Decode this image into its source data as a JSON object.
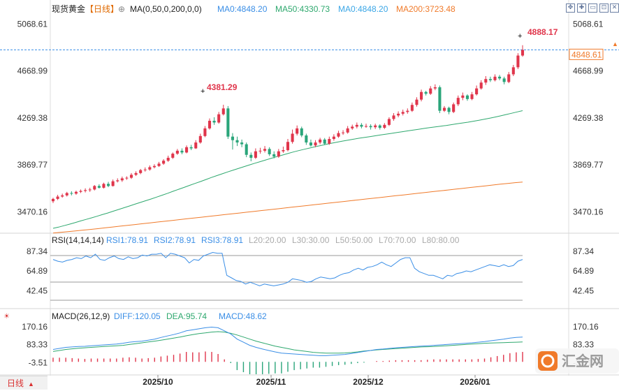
{
  "header": {
    "symbol": "现货黄金",
    "period": "【日线】",
    "ma_settings": "MA(0,50,0,200,0,0)",
    "ma_values": [
      {
        "label": "MA0:4848.20",
        "color": "#3a8ee6"
      },
      {
        "label": "MA50:4330.73",
        "color": "#2ea86e"
      },
      {
        "label": "MA0:4848.20",
        "color": "#3aa6e6"
      },
      {
        "label": "MA200:3723.48",
        "color": "#f07a2a"
      }
    ]
  },
  "window_controls": [
    "move-icon",
    "crosshair-icon",
    "minimize-icon",
    "maximize-icon",
    "close-icon"
  ],
  "main_axis": {
    "ticks": [
      "5068.61",
      "4668.99",
      "4269.38",
      "3869.77",
      "3470.16"
    ],
    "current_price": "4848.61",
    "high_label": "4888.17",
    "peak_label": "4381.29"
  },
  "rsi": {
    "title": "RSI(14,14,14)",
    "values_text": [
      {
        "label": "RSI1:78.91",
        "color": "#3a8ee6"
      },
      {
        "label": "RSI2:78.91",
        "color": "#3a8ee6"
      },
      {
        "label": "RSI3:78.91",
        "color": "#3a8ee6"
      },
      {
        "label": "L20:20.00",
        "color": "#aaaaaa"
      },
      {
        "label": "L30:30.00",
        "color": "#aaaaaa"
      },
      {
        "label": "L50:50.00",
        "color": "#aaaaaa"
      },
      {
        "label": "L70:70.00",
        "color": "#aaaaaa"
      },
      {
        "label": "L80:80.00",
        "color": "#aaaaaa"
      }
    ],
    "ticks": [
      "87.34",
      "64.89",
      "42.45"
    ]
  },
  "macd": {
    "title": "MACD(26,12,9)",
    "values_text": [
      {
        "label": "DIFF:120.05",
        "color": "#3a8ee6"
      },
      {
        "label": "DEA:95.74",
        "color": "#2ea86e"
      },
      {
        "label": "MACD:48.62",
        "color": "#3a8ee6"
      }
    ],
    "ticks": [
      "170.16",
      "83.33",
      "-3.51"
    ]
  },
  "x_axis": [
    "2025/10",
    "2025/11",
    "2025/12",
    "2026/01"
  ],
  "footer": {
    "period_tab": "日线"
  },
  "logo_text": "汇金网",
  "colors": {
    "up": "#e0354b",
    "down": "#2aa57a",
    "ma50": "#2ea86e",
    "ma200": "#f07a2a",
    "rsi": "#3a8ee6",
    "diff": "#3a8ee6",
    "dea": "#2ea86e"
  },
  "chart_data": [
    {
      "type": "candlestick",
      "title": "现货黄金 【日线】",
      "ylim": [
        3300,
        5130
      ],
      "candles": [
        [
          3560,
          3580,
          3545,
          3590
        ],
        [
          3580,
          3600,
          3570,
          3615
        ],
        [
          3600,
          3610,
          3590,
          3625
        ],
        [
          3610,
          3630,
          3600,
          3640
        ],
        [
          3630,
          3625,
          3610,
          3645
        ],
        [
          3625,
          3640,
          3615,
          3650
        ],
        [
          3640,
          3648,
          3630,
          3660
        ],
        [
          3648,
          3655,
          3635,
          3670
        ],
        [
          3655,
          3660,
          3640,
          3675
        ],
        [
          3660,
          3690,
          3652,
          3698
        ],
        [
          3690,
          3675,
          3668,
          3705
        ],
        [
          3675,
          3708,
          3668,
          3718
        ],
        [
          3708,
          3690,
          3680,
          3725
        ],
        [
          3690,
          3730,
          3685,
          3745
        ],
        [
          3730,
          3738,
          3720,
          3755
        ],
        [
          3738,
          3755,
          3725,
          3770
        ],
        [
          3755,
          3760,
          3742,
          3772
        ],
        [
          3760,
          3785,
          3750,
          3800
        ],
        [
          3785,
          3800,
          3775,
          3815
        ],
        [
          3800,
          3825,
          3790,
          3835
        ],
        [
          3825,
          3830,
          3812,
          3848
        ],
        [
          3830,
          3850,
          3820,
          3865
        ],
        [
          3850,
          3860,
          3840,
          3875
        ],
        [
          3860,
          3880,
          3852,
          3895
        ],
        [
          3880,
          3905,
          3870,
          3918
        ],
        [
          3905,
          3930,
          3895,
          3948
        ],
        [
          3930,
          3965,
          3920,
          3975
        ],
        [
          3965,
          3990,
          3955,
          4005
        ],
        [
          3990,
          3975,
          3960,
          4010
        ],
        [
          3975,
          4020,
          3968,
          4035
        ],
        [
          4020,
          4010,
          3995,
          4040
        ],
        [
          4010,
          4060,
          4005,
          4080
        ],
        [
          4060,
          4115,
          4050,
          4135
        ],
        [
          4115,
          4180,
          4105,
          4200
        ],
        [
          4180,
          4245,
          4170,
          4265
        ],
        [
          4245,
          4230,
          4210,
          4275
        ],
        [
          4230,
          4300,
          4220,
          4320
        ],
        [
          4300,
          4350,
          4290,
          4381
        ],
        [
          4350,
          4110,
          4090,
          4370
        ],
        [
          4110,
          4080,
          4000,
          4140
        ],
        [
          4080,
          4060,
          4030,
          4110
        ],
        [
          4060,
          4045,
          4020,
          4085
        ],
        [
          4045,
          3955,
          3935,
          4060
        ],
        [
          3955,
          3930,
          3900,
          3975
        ],
        [
          3930,
          3985,
          3920,
          4010
        ],
        [
          3985,
          3990,
          3965,
          4015
        ],
        [
          3990,
          4005,
          3975,
          4030
        ],
        [
          4005,
          3960,
          3945,
          4020
        ],
        [
          3960,
          3940,
          3925,
          3985
        ],
        [
          3940,
          3985,
          3930,
          4005
        ],
        [
          3985,
          3995,
          3972,
          4025
        ],
        [
          3995,
          4065,
          3985,
          4090
        ],
        [
          4065,
          4135,
          4050,
          4170
        ],
        [
          4135,
          4180,
          4120,
          4205
        ],
        [
          4180,
          4120,
          4105,
          4195
        ],
        [
          4120,
          4060,
          4040,
          4135
        ],
        [
          4060,
          4035,
          4025,
          4085
        ],
        [
          4035,
          4060,
          4020,
          4080
        ],
        [
          4060,
          4085,
          4045,
          4100
        ],
        [
          4085,
          4050,
          4038,
          4098
        ],
        [
          4050,
          4090,
          4040,
          4110
        ],
        [
          4090,
          4110,
          4075,
          4130
        ],
        [
          4110,
          4140,
          4100,
          4160
        ],
        [
          4140,
          4145,
          4125,
          4165
        ],
        [
          4145,
          4180,
          4135,
          4200
        ],
        [
          4180,
          4195,
          4168,
          4212
        ],
        [
          4195,
          4210,
          4180,
          4230
        ],
        [
          4210,
          4195,
          4180,
          4225
        ],
        [
          4195,
          4200,
          4185,
          4220
        ],
        [
          4200,
          4190,
          4170,
          4215
        ],
        [
          4190,
          4205,
          4175,
          4220
        ],
        [
          4205,
          4185,
          4170,
          4215
        ],
        [
          4185,
          4210,
          4175,
          4225
        ],
        [
          4210,
          4260,
          4200,
          4275
        ],
        [
          4260,
          4290,
          4245,
          4310
        ],
        [
          4290,
          4305,
          4275,
          4325
        ],
        [
          4305,
          4320,
          4290,
          4340
        ],
        [
          4320,
          4330,
          4305,
          4350
        ],
        [
          4330,
          4380,
          4320,
          4400
        ],
        [
          4380,
          4425,
          4365,
          4445
        ],
        [
          4425,
          4490,
          4410,
          4510
        ],
        [
          4490,
          4475,
          4460,
          4500
        ],
        [
          4475,
          4520,
          4465,
          4540
        ],
        [
          4520,
          4530,
          4505,
          4555
        ],
        [
          4530,
          4330,
          4310,
          4545
        ],
        [
          4330,
          4355,
          4320,
          4370
        ],
        [
          4355,
          4320,
          4300,
          4365
        ],
        [
          4320,
          4385,
          4310,
          4400
        ],
        [
          4385,
          4440,
          4370,
          4460
        ],
        [
          4440,
          4460,
          4420,
          4485
        ],
        [
          4460,
          4430,
          4415,
          4470
        ],
        [
          4430,
          4470,
          4420,
          4490
        ],
        [
          4470,
          4520,
          4460,
          4545
        ],
        [
          4520,
          4570,
          4510,
          4590
        ],
        [
          4570,
          4600,
          4550,
          4625
        ],
        [
          4600,
          4590,
          4575,
          4620
        ],
        [
          4590,
          4620,
          4580,
          4640
        ],
        [
          4620,
          4605,
          4590,
          4635
        ],
        [
          4605,
          4575,
          4555,
          4620
        ],
        [
          4575,
          4640,
          4565,
          4660
        ],
        [
          4640,
          4700,
          4625,
          4720
        ],
        [
          4700,
          4800,
          4685,
          4820
        ],
        [
          4800,
          4848,
          4790,
          4888
        ]
      ]
    },
    {
      "type": "line",
      "name": "MA50",
      "values": [
        3330,
        3340,
        3352,
        3365,
        3378,
        3392,
        3405,
        3418,
        3432,
        3446,
        3460,
        3475,
        3490,
        3505,
        3520,
        3535,
        3550,
        3565,
        3580,
        3596,
        3612,
        3628,
        3645,
        3662,
        3678,
        3695,
        3712,
        3728,
        3745,
        3762,
        3778,
        3794,
        3810,
        3825,
        3840,
        3855,
        3870,
        3884,
        3898,
        3912,
        3926,
        3940,
        3953,
        3966,
        3979,
        3991,
        4002,
        4013,
        4024,
        4034,
        4044,
        4054,
        4063,
        4072,
        4080,
        4088,
        4096,
        4103,
        4110,
        4117,
        4124,
        4131,
        4138,
        4145,
        4152,
        4159,
        4166,
        4173,
        4180,
        4187,
        4193,
        4199,
        4205,
        4212,
        4219,
        4226,
        4233,
        4241,
        4249,
        4258,
        4267,
        4277,
        4287,
        4298,
        4309,
        4320,
        4331
      ]
    },
    {
      "type": "line",
      "name": "MA200",
      "values": [
        3290,
        3296,
        3302,
        3308,
        3314,
        3320,
        3327,
        3334,
        3341,
        3348,
        3355,
        3362,
        3369,
        3376,
        3383,
        3390,
        3397,
        3404,
        3411,
        3418,
        3425,
        3432,
        3439,
        3446,
        3453,
        3460,
        3467,
        3474,
        3481,
        3488,
        3495,
        3502,
        3509,
        3516,
        3523,
        3530,
        3537,
        3544,
        3551,
        3558,
        3565,
        3572,
        3579,
        3586,
        3593,
        3600,
        3607,
        3614,
        3621,
        3628,
        3635,
        3642,
        3649,
        3656,
        3663,
        3670,
        3677,
        3684,
        3691,
        3698,
        3705,
        3712,
        3718,
        3723
      ]
    },
    {
      "type": "line",
      "name": "RSI",
      "ylim": [
        30,
        92
      ],
      "values": [
        78,
        76,
        75,
        77,
        78,
        80,
        79,
        82,
        80,
        84,
        78,
        77,
        80,
        82,
        79,
        78,
        81,
        79,
        80,
        83,
        82,
        84,
        84,
        85,
        80,
        85,
        84,
        82,
        80,
        74,
        78,
        77,
        82,
        84,
        86,
        85,
        85,
        60,
        57,
        54,
        53,
        50,
        52,
        50,
        48,
        50,
        49,
        48,
        49,
        50,
        52,
        56,
        55,
        54,
        52,
        53,
        56,
        58,
        57,
        56,
        57,
        60,
        62,
        63,
        66,
        68,
        66,
        69,
        70,
        72,
        75,
        72,
        70,
        74,
        78,
        80,
        80,
        68,
        64,
        62,
        60,
        60,
        58,
        56,
        60,
        59,
        62,
        63,
        65,
        64,
        66,
        68,
        70,
        72,
        71,
        70,
        72,
        70,
        71,
        76,
        78
      ]
    },
    {
      "type": "line",
      "name": "DIFF",
      "ylim": [
        -60,
        190
      ],
      "values": [
        60,
        65,
        70,
        72,
        74,
        75,
        78,
        80,
        82,
        84,
        86,
        90,
        95,
        98,
        100,
        105,
        110,
        118,
        125,
        132,
        140,
        150,
        155,
        160,
        165,
        168,
        165,
        150,
        135,
        110,
        95,
        80,
        70,
        62,
        55,
        48,
        42,
        40,
        38,
        36,
        34,
        32,
        30,
        30,
        32,
        34,
        36,
        40,
        45,
        50,
        55,
        60,
        62,
        65,
        68,
        70,
        72,
        74,
        76,
        78,
        80,
        82,
        84,
        86,
        88,
        90,
        92,
        95,
        98,
        102,
        106,
        110,
        115,
        118,
        120
      ]
    },
    {
      "type": "line",
      "name": "DEA",
      "values": [
        50,
        55,
        60,
        63,
        66,
        68,
        70,
        72,
        74,
        76,
        78,
        80,
        84,
        88,
        92,
        96,
        100,
        105,
        110,
        115,
        120,
        126,
        132,
        137,
        140,
        144,
        146,
        144,
        138,
        130,
        120,
        110,
        100,
        92,
        84,
        76,
        70,
        64,
        58,
        54,
        50,
        46,
        44,
        42,
        42,
        42,
        43,
        45,
        48,
        52,
        55,
        58,
        60,
        62,
        64,
        66,
        68,
        70,
        72,
        73,
        74,
        76,
        78,
        80,
        82,
        84,
        86,
        88,
        90,
        91,
        92,
        93,
        94,
        95,
        96
      ]
    },
    {
      "type": "bar",
      "name": "MACD",
      "values": [
        20,
        20,
        20,
        18,
        16,
        14,
        16,
        16,
        16,
        16,
        16,
        20,
        22,
        20,
        16,
        18,
        20,
        26,
        30,
        34,
        40,
        48,
        46,
        46,
        50,
        48,
        38,
        12,
        -6,
        -40,
        -50,
        -60,
        -60,
        -60,
        -58,
        -56,
        -56,
        -48,
        -40,
        -36,
        -32,
        -28,
        -28,
        -24,
        -20,
        -16,
        -14,
        -10,
        -6,
        -4,
        0,
        4,
        4,
        6,
        8,
        8,
        8,
        8,
        8,
        10,
        12,
        12,
        12,
        12,
        12,
        12,
        12,
        14,
        16,
        22,
        28,
        34,
        42,
        46,
        48
      ]
    }
  ]
}
